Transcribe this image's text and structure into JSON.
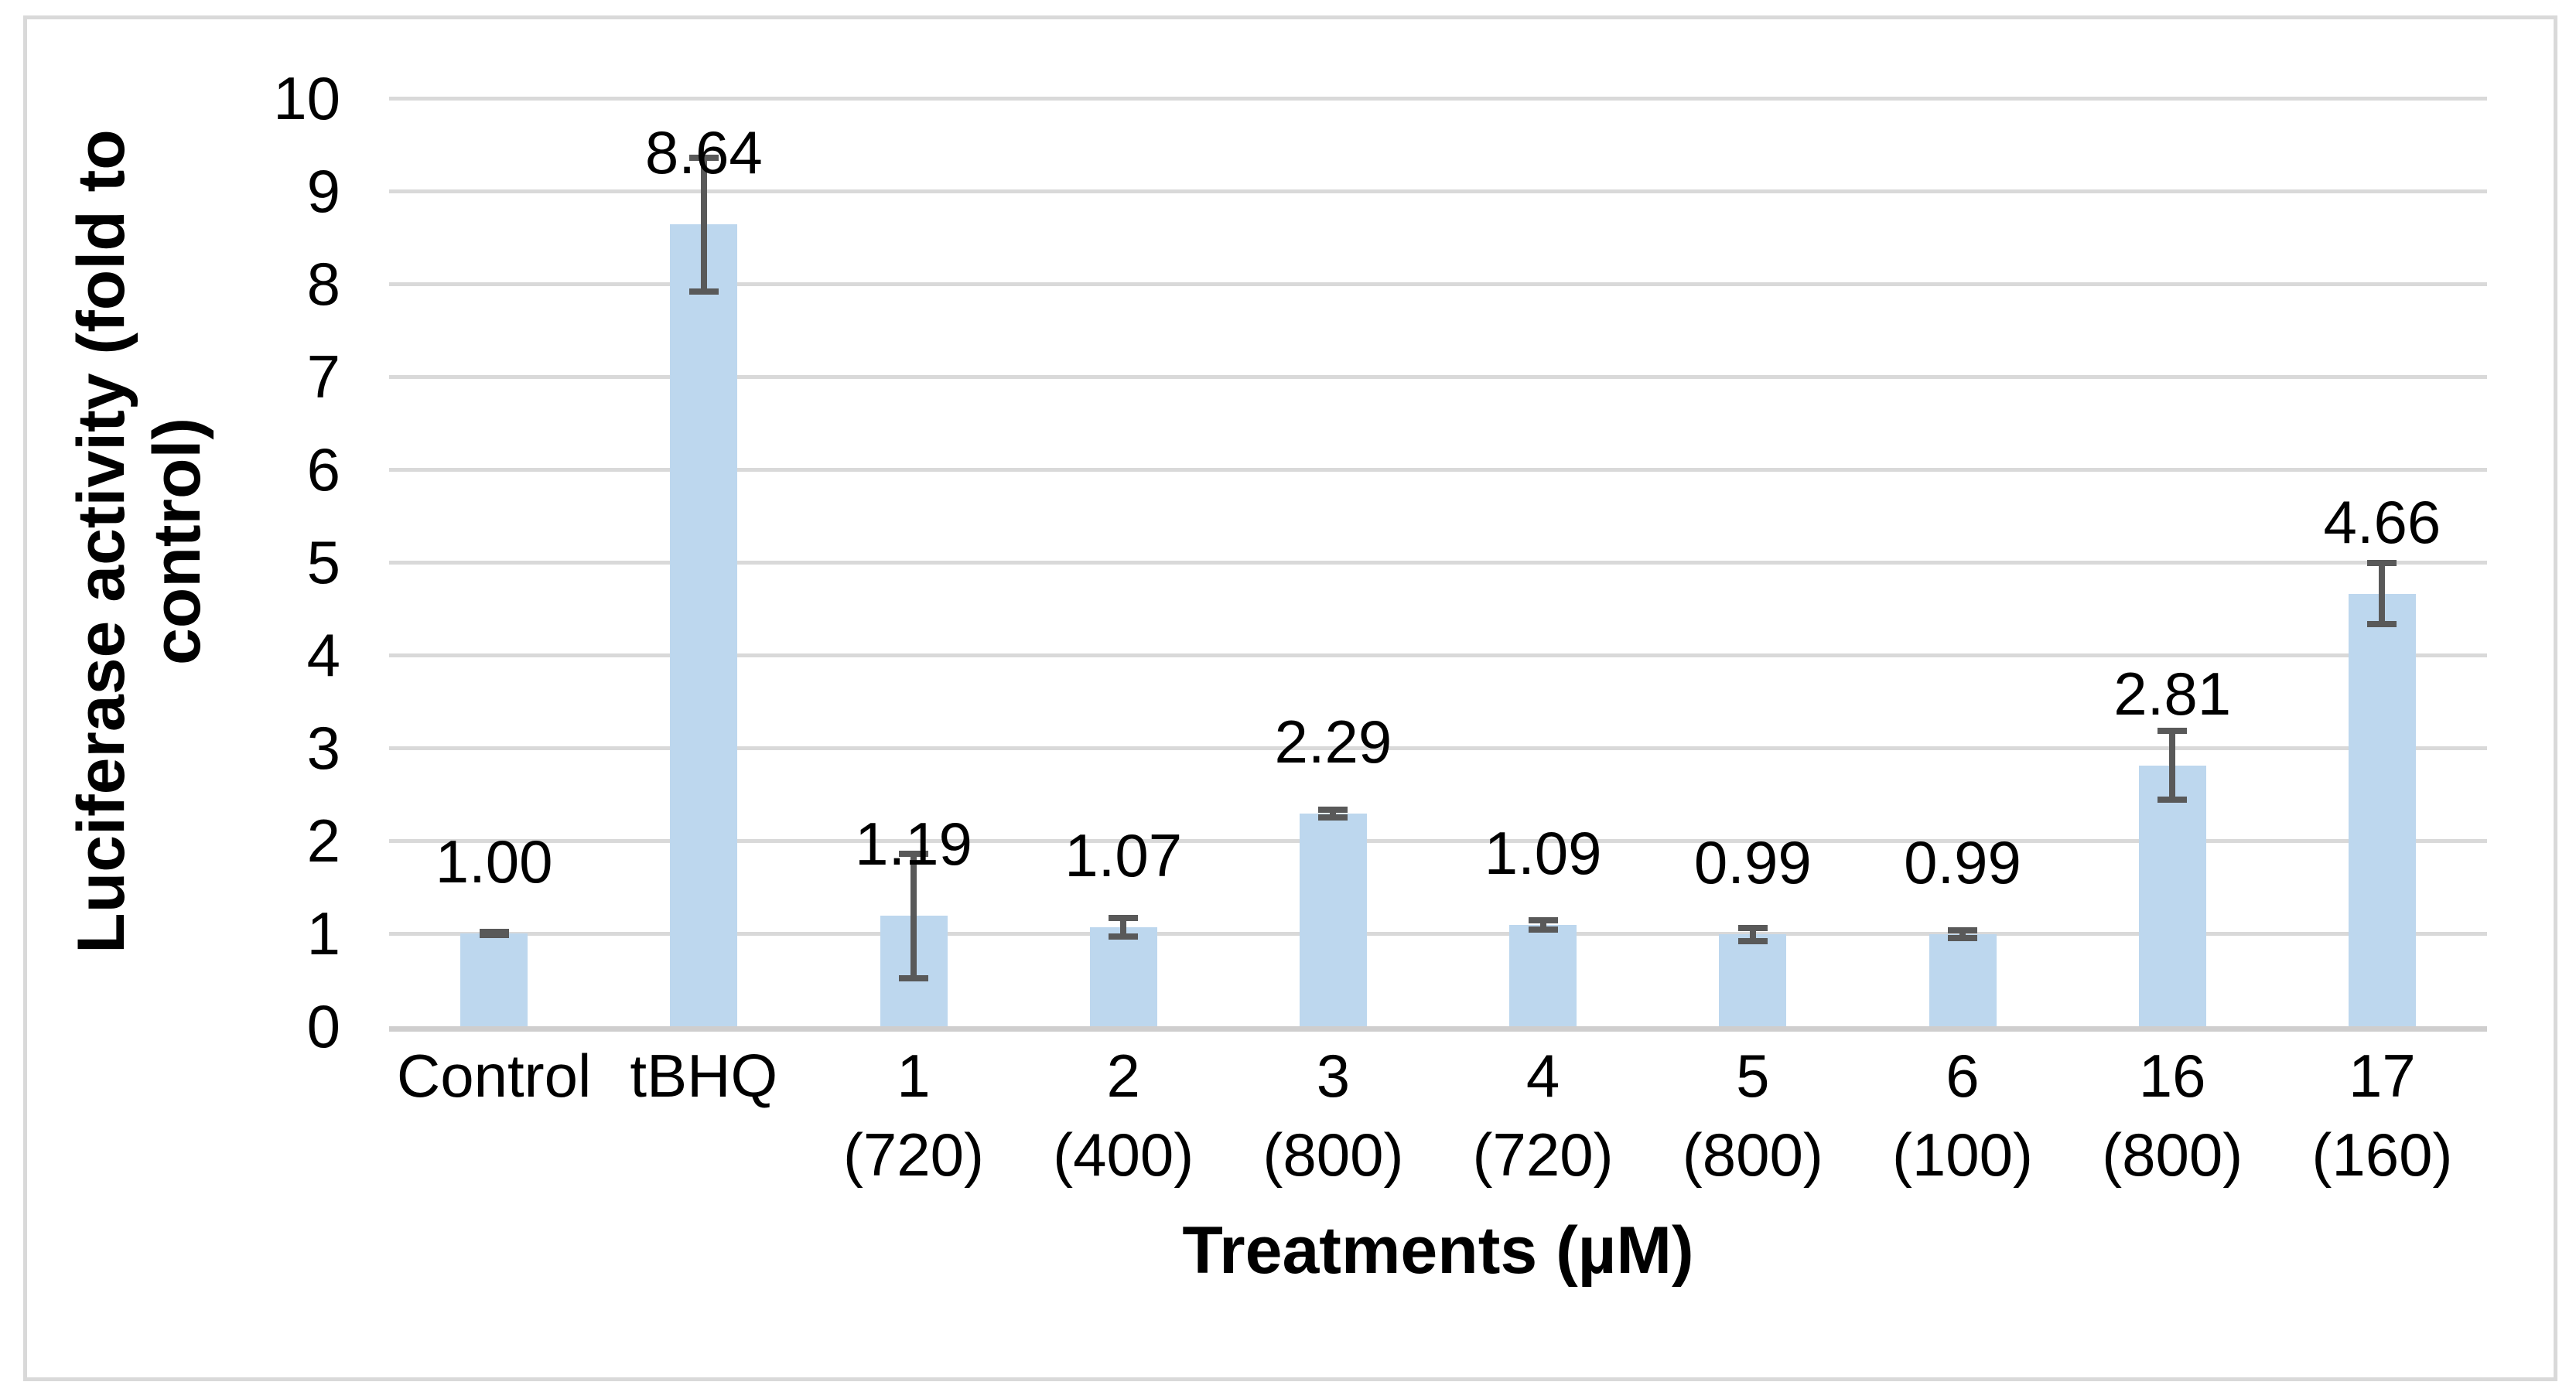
{
  "chart_data": {
    "type": "bar",
    "title": "",
    "xlabel": "Treatments (µM)",
    "ylabel": "Luciferase activity (fold to control)",
    "ylabel_wrap": [
      "Luciferase activity (fold to",
      "control)"
    ],
    "ylim": [
      0,
      10
    ],
    "yticks": [
      "0",
      "1",
      "2",
      "3",
      "4",
      "5",
      "6",
      "7",
      "8",
      "9",
      "10"
    ],
    "grid": true,
    "legend": false,
    "categories": [
      "Control",
      "tBHQ",
      "1 (720)",
      "2 (400)",
      "3 (800)",
      "4 (720)",
      "5 (800)",
      "6 (100)",
      "16 (800)",
      "17 (160)"
    ],
    "category_label_lines": [
      [
        "Control"
      ],
      [
        "tBHQ"
      ],
      [
        "1",
        "(720)"
      ],
      [
        "2",
        "(400)"
      ],
      [
        "3",
        "(800)"
      ],
      [
        "4",
        "(720)"
      ],
      [
        "5",
        "(800)"
      ],
      [
        "6",
        "(100)"
      ],
      [
        "16",
        "(800)"
      ],
      [
        "17",
        "(160)"
      ]
    ],
    "values": [
      1.0,
      8.64,
      1.19,
      1.07,
      2.29,
      1.09,
      0.99,
      0.99,
      2.81,
      4.66
    ],
    "data_labels": [
      "1.00",
      "8.64",
      "1.19",
      "1.07",
      "2.29",
      "1.09",
      "0.99",
      "0.99",
      "2.81",
      "4.66"
    ],
    "error_bars": [
      0.02,
      0.72,
      0.67,
      0.1,
      0.04,
      0.05,
      0.07,
      0.04,
      0.37,
      0.33
    ],
    "colors": {
      "bar_fill": "#BDD7EE",
      "error_bar": "#595959",
      "gridline": "#D9D9D9",
      "axis_line": "#CFCECE",
      "chart_border": "#D9D9D9",
      "text": "#000000",
      "background": "#FFFFFF"
    }
  }
}
